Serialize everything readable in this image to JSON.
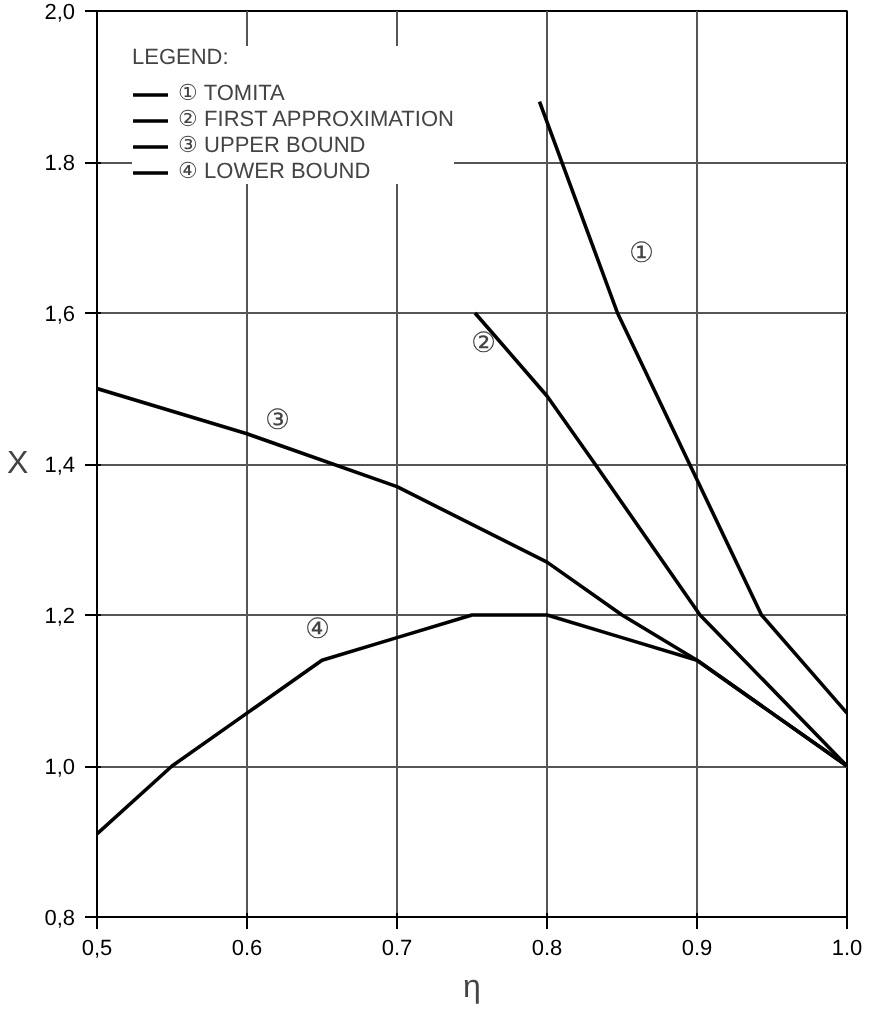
{
  "chart_data": {
    "type": "line",
    "xlabel": "η",
    "ylabel": "X",
    "legend_title": "LEGEND:",
    "xlim": [
      0.5,
      1.0
    ],
    "ylim": [
      0.8,
      2.0
    ],
    "xticks": [
      {
        "value": 0.5,
        "label": "0,5"
      },
      0.6,
      0.7,
      0.8,
      0.9,
      {
        "value": 1.0,
        "label": "1.0"
      }
    ],
    "yticks": [
      {
        "value": 0.8,
        "label": "0,8"
      },
      {
        "value": 1.0,
        "label": "1,0"
      },
      {
        "value": 1.2,
        "label": "1,2"
      },
      {
        "value": 1.4,
        "label": "1,4"
      },
      {
        "value": 1.6,
        "label": "1,6"
      },
      1.8,
      {
        "value": 2.0,
        "label": "2,0"
      }
    ],
    "grid": true,
    "legend": "top left",
    "marker": "none",
    "line_style": "solid",
    "series": [
      {
        "name": "① TOMITA",
        "color": "#000000",
        "x": [
          0.795,
          0.847,
          0.895,
          0.943,
          1.0
        ],
        "values": [
          1.88,
          1.6,
          1.4,
          1.2,
          1.07
        ]
      },
      {
        "name": "② FIRST APPROXIMATION",
        "color": "#000000",
        "x": [
          0.752,
          0.8,
          0.832,
          0.902,
          1.0
        ],
        "values": [
          1.6,
          1.49,
          1.4,
          1.2,
          1.0
        ]
      },
      {
        "name": "③ UPPER BOUND",
        "color": "#000000",
        "x": [
          0.5,
          0.6,
          0.7,
          0.8,
          0.85,
          0.9,
          1.0
        ],
        "values": [
          1.5,
          1.44,
          1.37,
          1.27,
          1.2,
          1.14,
          1.0
        ]
      },
      {
        "name": "④ LOWER BOUND",
        "color": "#000000",
        "x": [
          0.5,
          0.55,
          0.6,
          0.65,
          0.7,
          0.75,
          0.8,
          0.85,
          0.9,
          0.95,
          1.0
        ],
        "values": [
          0.91,
          1.0,
          1.07,
          1.14,
          1.17,
          1.2,
          1.2,
          1.17,
          1.14,
          1.07,
          1.0
        ]
      }
    ],
    "annotations": [
      "①",
      "②",
      "③",
      "④"
    ]
  }
}
